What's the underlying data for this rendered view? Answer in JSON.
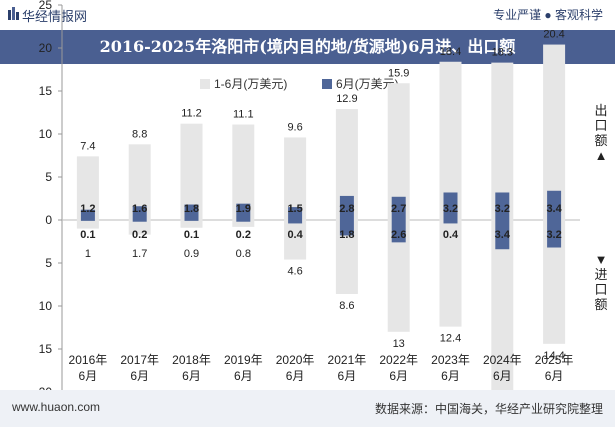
{
  "header": {
    "brand": "华经情报网",
    "right_text": "专业严谨 ● 客观科学"
  },
  "title": "2016-2025年洛阳市(境内目的地/货源地)6月进、出口额",
  "side_labels": {
    "export": "出口额▲",
    "import": "▼进口额"
  },
  "footer": {
    "website": "www.huaon.com",
    "source": "数据来源：中国海关，华经产业研究院整理"
  },
  "colors": {
    "cumulative": "#e6e6e6",
    "monthly": "#4f6698",
    "title_bar": "#4a5f91"
  },
  "chart_data": {
    "type": "bar",
    "categories": [
      "2016年\n6月",
      "2017年\n6月",
      "2018年\n6月",
      "2019年\n6月",
      "2020年\n6月",
      "2021年\n6月",
      "2022年\n6月",
      "2023年\n6月",
      "2024年\n6月",
      "2025年\n6月"
    ],
    "series": [
      {
        "name": "1-6月(万美元)",
        "export": [
          7.4,
          8.8,
          11.2,
          11.1,
          9.6,
          12.9,
          15.9,
          18.4,
          18.3,
          20.4
        ],
        "import": [
          1,
          1.7,
          0.9,
          0.8,
          4.6,
          8.6,
          13,
          12.4,
          20.4,
          14.4
        ]
      },
      {
        "name": "6月(万美元)",
        "export": [
          1.2,
          1.6,
          1.8,
          1.9,
          1.5,
          2.8,
          2.7,
          3.2,
          3.2,
          3.4
        ],
        "import": [
          0.1,
          0.2,
          0.1,
          0.2,
          0.4,
          1.8,
          2.6,
          0.4,
          3.4,
          3.2
        ]
      }
    ],
    "y_ticks": [
      25,
      20,
      15,
      10,
      5,
      0,
      5,
      10,
      15,
      20,
      25
    ],
    "ylim": [
      -25,
      25
    ],
    "grid": false,
    "legend_position": "top-center"
  }
}
